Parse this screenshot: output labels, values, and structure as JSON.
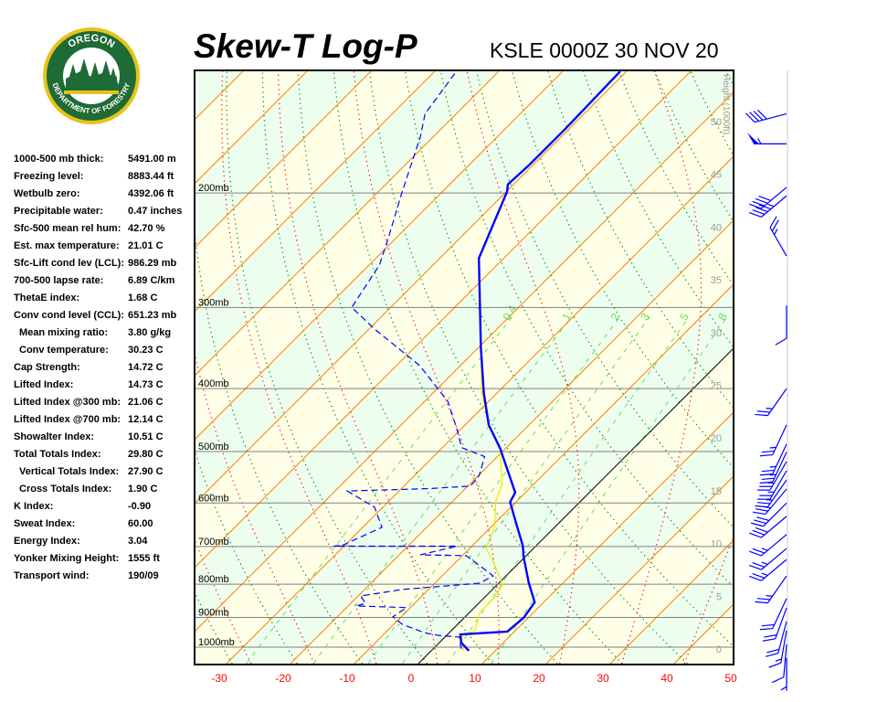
{
  "header": {
    "title": "Skew-T Log-P",
    "station_time": "KSLE 0000Z 30 NOV 20"
  },
  "logo": {
    "top_text": "OREGON",
    "bottom_text": "DEPARTMENT OF FORESTRY",
    "colors": {
      "ring": "#e8c21a",
      "green": "#1f6b35"
    }
  },
  "stats": [
    {
      "label": "1000-500 mb thick:",
      "value": "5491.00 m"
    },
    {
      "label": "Freezing level:",
      "value": "8883.44 ft"
    },
    {
      "label": "Wetbulb zero:",
      "value": "4392.06 ft"
    },
    {
      "label": "Precipitable water:",
      "value": "0.47 inches"
    },
    {
      "label": "Sfc-500 mean rel hum:",
      "value": "42.70 %"
    },
    {
      "label": "Est. max temperature:",
      "value": "21.01 C"
    },
    {
      "label": "Sfc-Lift cond lev (LCL):",
      "value": "986.29 mb"
    },
    {
      "label": "700-500 lapse rate:",
      "value": "6.89 C/km"
    },
    {
      "label": "ThetaE index:",
      "value": "1.68 C"
    },
    {
      "label": "Conv cond level (CCL):",
      "value": "651.23 mb"
    },
    {
      "label": "Mean mixing ratio:",
      "value": "3.80 g/kg",
      "indent": true
    },
    {
      "label": "Conv temperature:",
      "value": "30.23 C",
      "indent": true
    },
    {
      "label": "Cap Strength:",
      "value": "14.72 C"
    },
    {
      "label": "Lifted Index:",
      "value": "14.73 C"
    },
    {
      "label": "Lifted Index @300 mb:",
      "value": "21.06 C"
    },
    {
      "label": "Lifted Index @700 mb:",
      "value": "12.14 C"
    },
    {
      "label": "Showalter Index:",
      "value": "10.51 C"
    },
    {
      "label": "Total Totals Index:",
      "value": "29.80 C"
    },
    {
      "label": "Vertical Totals Index:",
      "value": "27.90 C",
      "indent": true
    },
    {
      "label": "Cross Totals Index:",
      "value": "1.90 C",
      "indent": true
    },
    {
      "label": "K Index:",
      "value": "-0.90"
    },
    {
      "label": "Sweat Index:",
      "value": "60.00"
    },
    {
      "label": "Energy Index:",
      "value": "3.04"
    },
    {
      "label": "Yonker Mixing Height:",
      "value": "1555 ft"
    },
    {
      "label": "Transport wind:",
      "value": "190/09"
    }
  ],
  "chart_data": {
    "type": "skew-t log-p",
    "title": "Skew-T Log-P",
    "pressure_range_mb": [
      1050,
      130
    ],
    "pressure_scale": "log",
    "pressure_labels": [
      "200mb",
      "300mb",
      "400mb",
      "500mb",
      "600mb",
      "700mb",
      "800mb",
      "900mb",
      "1000mb"
    ],
    "pressure_levels": [
      200,
      300,
      400,
      500,
      600,
      700,
      800,
      900,
      1000
    ],
    "temperature_ticks": [
      -30,
      -20,
      -10,
      0,
      10,
      20,
      30,
      40,
      50
    ],
    "height_axis_label": "Height (1000ft)",
    "height_ticks": [
      0,
      5,
      10,
      15,
      20,
      25,
      30,
      35,
      40,
      45,
      50
    ],
    "mixing_ratio_lines": [
      0.4,
      1,
      2,
      3,
      5,
      8
    ],
    "mixing_ratio_labels": [
      "0.4",
      "1",
      "2",
      "3",
      "5",
      "8"
    ],
    "colors": {
      "temperature": "#0000ff",
      "dewpoint": "#0000ff",
      "parcel": "#e8e800",
      "isotherm": "#ff8000",
      "zero_isotherm": "#000000",
      "dry_adiabat": "#008000",
      "moist_adiabat": "#ff0000",
      "mixing_ratio": "#66dd66",
      "band_a": "#eefeee",
      "band_b": "#ffffe8",
      "isobar": "#808080",
      "tick_label": "#ff0000",
      "wind": "#0000ff"
    },
    "temperature": [
      [
        1013,
        5.9
      ],
      [
        984,
        3.4
      ],
      [
        956,
        2.0
      ],
      [
        946,
        8.9
      ],
      [
        901,
        9.3
      ],
      [
        853,
        8.6
      ],
      [
        797,
        4.7
      ],
      [
        728,
        -0.1
      ],
      [
        698,
        -2.1
      ],
      [
        644,
        -6.7
      ],
      [
        598,
        -10.9
      ],
      [
        578,
        -11.6
      ],
      [
        533,
        -16.4
      ],
      [
        494,
        -20.9
      ],
      [
        455,
        -26.3
      ],
      [
        406,
        -32.1
      ],
      [
        346,
        -39.6
      ],
      [
        252,
        -53.9
      ],
      [
        199,
        -59.9
      ],
      [
        194,
        -60.9
      ],
      [
        181,
        -60.6
      ],
      [
        159,
        -60.6
      ],
      [
        130,
        -61.0
      ]
    ],
    "dewpoint": [
      [
        1006,
        4.4
      ],
      [
        965,
        2.3
      ],
      [
        959,
        -1.3
      ],
      [
        950,
        -3.9
      ],
      [
        922,
        -8.7
      ],
      [
        898,
        -11.3
      ],
      [
        869,
        -10.6
      ],
      [
        864,
        -18.7
      ],
      [
        856,
        -17.7
      ],
      [
        834,
        -19.6
      ],
      [
        815,
        -14.1
      ],
      [
        797,
        -3.0
      ],
      [
        777,
        -2.0
      ],
      [
        740,
        -7.0
      ],
      [
        723,
        -9.4
      ],
      [
        721,
        -16.7
      ],
      [
        699,
        -12.3
      ],
      [
        699,
        -31.6
      ],
      [
        696,
        -30.3
      ],
      [
        654,
        -27.0
      ],
      [
        609,
        -31.3
      ],
      [
        575,
        -38.1
      ],
      [
        570,
        -25.6
      ],
      [
        565,
        -19.6
      ],
      [
        544,
        -19.9
      ],
      [
        509,
        -22.0
      ],
      [
        493,
        -27.0
      ],
      [
        462,
        -30.6
      ],
      [
        419,
        -36.3
      ],
      [
        369,
        -46.3
      ],
      [
        324,
        -59.1
      ],
      [
        300,
        -66.1
      ],
      [
        258,
        -68.4
      ],
      [
        234,
        -71.3
      ],
      [
        199,
        -76.3
      ],
      [
        164,
        -82.0
      ],
      [
        151,
        -84.9
      ],
      [
        129,
        -86.7
      ]
    ],
    "parcel": [
      [
        1013,
        5.0
      ],
      [
        959,
        2.3
      ],
      [
        944,
        3.7
      ],
      [
        884,
        1.6
      ],
      [
        843,
        1.6
      ],
      [
        802,
        0.9
      ],
      [
        740,
        -4.1
      ],
      [
        705,
        -7.4
      ],
      [
        654,
        -9.4
      ],
      [
        596,
        -13.3
      ],
      [
        562,
        -14.9
      ],
      [
        494,
        -20.9
      ],
      [
        455,
        -26.3
      ],
      [
        406,
        -32.4
      ],
      [
        252,
        -53.9
      ]
    ],
    "winds": [
      [
        151,
        255,
        40
      ],
      [
        168,
        270,
        55
      ],
      [
        196,
        230,
        40
      ],
      [
        202,
        230,
        45
      ],
      [
        250,
        330,
        25
      ],
      [
        298,
        180,
        10
      ],
      [
        400,
        215,
        25
      ],
      [
        455,
        205,
        25
      ],
      [
        487,
        205,
        25
      ],
      [
        501,
        205,
        25
      ],
      [
        518,
        210,
        25
      ],
      [
        535,
        210,
        25
      ],
      [
        553,
        215,
        25
      ],
      [
        571,
        220,
        25
      ],
      [
        600,
        225,
        30
      ],
      [
        629,
        230,
        30
      ],
      [
        671,
        230,
        25
      ],
      [
        705,
        230,
        25
      ],
      [
        733,
        230,
        25
      ],
      [
        777,
        215,
        25
      ],
      [
        842,
        205,
        20
      ],
      [
        870,
        200,
        20
      ],
      [
        913,
        195,
        20
      ],
      [
        943,
        190,
        15
      ],
      [
        990,
        185,
        10
      ],
      [
        1039,
        180,
        5
      ]
    ]
  }
}
